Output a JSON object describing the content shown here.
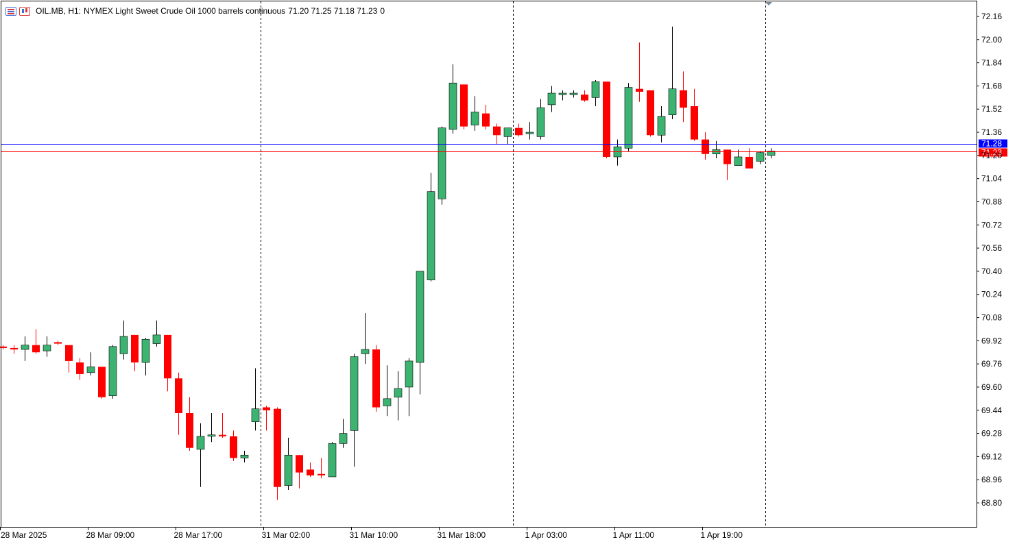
{
  "header": {
    "symbol": "OIL.MB, H1:",
    "description": "NYMEX Light Sweet Crude Oil 1000 barrels continuous",
    "ohlc": "71.20 71.25 71.18 71.23",
    "volume": "0",
    "icons": [
      "indicator-list-icon",
      "chart-properties-icon"
    ]
  },
  "chart_data": {
    "type": "candlestick",
    "timeframe": "H1",
    "ylim": [
      68.64,
      72.24
    ],
    "y_ticks": [
      "72.16",
      "72.00",
      "71.84",
      "71.68",
      "71.52",
      "71.36",
      "71.20",
      "71.04",
      "70.88",
      "70.72",
      "70.56",
      "70.40",
      "70.24",
      "70.08",
      "69.92",
      "69.76",
      "69.60",
      "69.44",
      "69.28",
      "69.12",
      "68.96",
      "68.80"
    ],
    "x_ticks": [
      {
        "label": "28 Mar 2025",
        "index": 0
      },
      {
        "label": "28 Mar 09:00",
        "index": 8
      },
      {
        "label": "28 Mar 17:00",
        "index": 16
      },
      {
        "label": "31 Mar 02:00",
        "index": 24
      },
      {
        "label": "31 Mar 10:00",
        "index": 32
      },
      {
        "label": "31 Mar 18:00",
        "index": 40
      },
      {
        "label": "1 Apr 03:00",
        "index": 48
      },
      {
        "label": "1 Apr 11:00",
        "index": 56
      },
      {
        "label": "1 Apr 19:00",
        "index": 64
      }
    ],
    "period_separators": [
      23,
      46,
      69
    ],
    "price_lines": [
      {
        "name": "ask",
        "value": 71.28,
        "label": "71.28",
        "color": "#0000ff"
      },
      {
        "name": "bid",
        "value": 71.23,
        "label": "71.23",
        "color": "#ff0000"
      }
    ],
    "colors": {
      "bull": "#3cb371",
      "bear": "#ff0000",
      "wick": "#000000",
      "grid": "#000000",
      "axis": "#000000"
    },
    "candles": [
      {
        "o": 69.88,
        "h": 69.89,
        "l": 69.86,
        "c": 69.87
      },
      {
        "o": 69.87,
        "h": 69.89,
        "l": 69.83,
        "c": 69.86
      },
      {
        "o": 69.86,
        "h": 69.95,
        "l": 69.78,
        "c": 69.89
      },
      {
        "o": 69.89,
        "h": 70.0,
        "l": 69.83,
        "c": 69.84
      },
      {
        "o": 69.85,
        "h": 69.95,
        "l": 69.81,
        "c": 69.89
      },
      {
        "o": 69.91,
        "h": 69.92,
        "l": 69.89,
        "c": 69.9
      },
      {
        "o": 69.89,
        "h": 69.89,
        "l": 69.7,
        "c": 69.78
      },
      {
        "o": 69.77,
        "h": 69.8,
        "l": 69.65,
        "c": 69.69
      },
      {
        "o": 69.7,
        "h": 69.84,
        "l": 69.68,
        "c": 69.74
      },
      {
        "o": 69.74,
        "h": 69.74,
        "l": 69.52,
        "c": 69.53
      },
      {
        "o": 69.54,
        "h": 69.89,
        "l": 69.52,
        "c": 69.88
      },
      {
        "o": 69.83,
        "h": 70.06,
        "l": 69.79,
        "c": 69.95
      },
      {
        "o": 69.96,
        "h": 69.96,
        "l": 69.71,
        "c": 69.77
      },
      {
        "o": 69.77,
        "h": 69.94,
        "l": 69.68,
        "c": 69.93
      },
      {
        "o": 69.9,
        "h": 70.06,
        "l": 69.88,
        "c": 69.96
      },
      {
        "o": 69.96,
        "h": 69.96,
        "l": 69.57,
        "c": 69.66
      },
      {
        "o": 69.66,
        "h": 69.7,
        "l": 69.27,
        "c": 69.42
      },
      {
        "o": 69.42,
        "h": 69.53,
        "l": 69.16,
        "c": 69.18
      },
      {
        "o": 69.17,
        "h": 69.35,
        "l": 68.91,
        "c": 69.26
      },
      {
        "o": 69.26,
        "h": 69.42,
        "l": 69.22,
        "c": 69.27
      },
      {
        "o": 69.27,
        "h": 69.42,
        "l": 69.25,
        "c": 69.26
      },
      {
        "o": 69.26,
        "h": 69.3,
        "l": 69.09,
        "c": 69.11
      },
      {
        "o": 69.11,
        "h": 69.16,
        "l": 69.08,
        "c": 69.13
      },
      {
        "o": 69.36,
        "h": 69.73,
        "l": 69.3,
        "c": 69.45
      },
      {
        "o": 69.46,
        "h": 69.47,
        "l": 69.3,
        "c": 69.44
      },
      {
        "o": 69.45,
        "h": 69.46,
        "l": 68.82,
        "c": 68.91
      },
      {
        "o": 68.92,
        "h": 69.25,
        "l": 68.89,
        "c": 69.13
      },
      {
        "o": 69.13,
        "h": 69.13,
        "l": 68.9,
        "c": 69.01
      },
      {
        "o": 69.03,
        "h": 69.08,
        "l": 68.98,
        "c": 68.99
      },
      {
        "o": 69.0,
        "h": 69.11,
        "l": 68.97,
        "c": 68.99
      },
      {
        "o": 68.98,
        "h": 69.22,
        "l": 68.98,
        "c": 69.21
      },
      {
        "o": 69.21,
        "h": 69.38,
        "l": 69.18,
        "c": 69.28
      },
      {
        "o": 69.3,
        "h": 69.83,
        "l": 69.05,
        "c": 69.81
      },
      {
        "o": 69.83,
        "h": 70.11,
        "l": 69.76,
        "c": 69.86
      },
      {
        "o": 69.86,
        "h": 69.89,
        "l": 69.43,
        "c": 69.46
      },
      {
        "o": 69.47,
        "h": 69.75,
        "l": 69.4,
        "c": 69.52
      },
      {
        "o": 69.53,
        "h": 69.71,
        "l": 69.37,
        "c": 69.59
      },
      {
        "o": 69.6,
        "h": 69.8,
        "l": 69.4,
        "c": 69.78
      },
      {
        "o": 69.77,
        "h": 70.4,
        "l": 69.55,
        "c": 70.4
      },
      {
        "o": 70.34,
        "h": 71.08,
        "l": 70.33,
        "c": 70.95
      },
      {
        "o": 70.9,
        "h": 71.4,
        "l": 70.86,
        "c": 71.39
      },
      {
        "o": 71.38,
        "h": 71.83,
        "l": 71.35,
        "c": 71.7
      },
      {
        "o": 71.69,
        "h": 71.69,
        "l": 71.38,
        "c": 71.4
      },
      {
        "o": 71.41,
        "h": 71.61,
        "l": 71.37,
        "c": 71.5
      },
      {
        "o": 71.49,
        "h": 71.55,
        "l": 71.38,
        "c": 71.4
      },
      {
        "o": 71.4,
        "h": 71.42,
        "l": 71.28,
        "c": 71.34
      },
      {
        "o": 71.33,
        "h": 71.39,
        "l": 71.28,
        "c": 71.39
      },
      {
        "o": 71.39,
        "h": 71.42,
        "l": 71.33,
        "c": 71.34
      },
      {
        "o": 71.35,
        "h": 71.43,
        "l": 71.31,
        "c": 71.36
      },
      {
        "o": 71.33,
        "h": 71.59,
        "l": 71.31,
        "c": 71.53
      },
      {
        "o": 71.55,
        "h": 71.68,
        "l": 71.5,
        "c": 71.63
      },
      {
        "o": 71.62,
        "h": 71.65,
        "l": 71.58,
        "c": 71.63
      },
      {
        "o": 71.62,
        "h": 71.65,
        "l": 71.6,
        "c": 71.63
      },
      {
        "o": 71.62,
        "h": 71.65,
        "l": 71.57,
        "c": 71.58
      },
      {
        "o": 71.6,
        "h": 71.72,
        "l": 71.54,
        "c": 71.71
      },
      {
        "o": 71.71,
        "h": 71.71,
        "l": 71.18,
        "c": 71.19
      },
      {
        "o": 71.19,
        "h": 71.31,
        "l": 71.13,
        "c": 71.26
      },
      {
        "o": 71.25,
        "h": 71.7,
        "l": 71.23,
        "c": 71.67
      },
      {
        "o": 71.66,
        "h": 71.98,
        "l": 71.57,
        "c": 71.64
      },
      {
        "o": 71.65,
        "h": 71.65,
        "l": 71.33,
        "c": 71.34
      },
      {
        "o": 71.34,
        "h": 71.54,
        "l": 71.29,
        "c": 71.47
      },
      {
        "o": 71.48,
        "h": 72.09,
        "l": 71.45,
        "c": 71.66
      },
      {
        "o": 71.65,
        "h": 71.78,
        "l": 71.43,
        "c": 71.53
      },
      {
        "o": 71.54,
        "h": 71.66,
        "l": 71.3,
        "c": 71.31
      },
      {
        "o": 71.31,
        "h": 71.36,
        "l": 71.17,
        "c": 71.21
      },
      {
        "o": 71.21,
        "h": 71.3,
        "l": 71.18,
        "c": 71.24
      },
      {
        "o": 71.24,
        "h": 71.24,
        "l": 71.03,
        "c": 71.14
      },
      {
        "o": 71.13,
        "h": 71.24,
        "l": 71.13,
        "c": 71.19
      },
      {
        "o": 71.19,
        "h": 71.25,
        "l": 71.11,
        "c": 71.11
      },
      {
        "o": 71.16,
        "h": 71.23,
        "l": 71.14,
        "c": 71.22
      },
      {
        "o": 71.2,
        "h": 71.25,
        "l": 71.18,
        "c": 71.23
      }
    ]
  }
}
